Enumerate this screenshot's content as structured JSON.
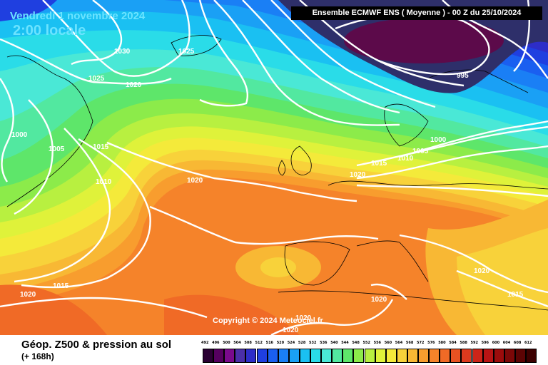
{
  "map": {
    "date_text": "Vendredi 1 novembre 2024",
    "time_text": "2:00 locale",
    "run_text": "Ensemble ECMWF ENS  ( Moyenne )  -  00 Z du 25/10/2024",
    "copyright": "Copyright © 2024 Meteociel.fr",
    "isobar_labels": [
      {
        "id": "1030",
        "text": "1030"
      },
      {
        "id": "1025a",
        "text": "1025"
      },
      {
        "id": "1025b",
        "text": "1025"
      },
      {
        "id": "1020a",
        "text": "1020"
      },
      {
        "id": "995",
        "text": "995"
      },
      {
        "id": "1000a",
        "text": "1000"
      },
      {
        "id": "1005a",
        "text": "1005"
      },
      {
        "id": "1015a",
        "text": "1015"
      },
      {
        "id": "1010a",
        "text": "1010"
      },
      {
        "id": "1020b",
        "text": "1020"
      },
      {
        "id": "1000b",
        "text": "1000"
      },
      {
        "id": "1005b",
        "text": "1005"
      },
      {
        "id": "1010b",
        "text": "1010"
      },
      {
        "id": "1015b",
        "text": "1015"
      },
      {
        "id": "1020c",
        "text": "1020"
      },
      {
        "id": "1015c",
        "text": "1015"
      },
      {
        "id": "1020d",
        "text": "1020"
      },
      {
        "id": "1020e",
        "text": "1020"
      },
      {
        "id": "1015d",
        "text": "1015"
      },
      {
        "id": "1020f",
        "text": "1020"
      },
      {
        "id": "1020g",
        "text": "1020"
      },
      {
        "id": "1020h",
        "text": "1020"
      }
    ]
  },
  "legend": {
    "title": "Géop. Z500 & pression au sol",
    "subtitle": "(+ 168h)",
    "scale_values": [
      "492",
      "496",
      "500",
      "504",
      "508",
      "512",
      "516",
      "520",
      "524",
      "528",
      "532",
      "536",
      "540",
      "544",
      "548",
      "552",
      "556",
      "560",
      "564",
      "568",
      "572",
      "576",
      "580",
      "584",
      "588",
      "592",
      "596",
      "600",
      "604",
      "608",
      "612"
    ],
    "scale_colors": [
      "#2a0033",
      "#55005f",
      "#7a0a8c",
      "#4b2fa8",
      "#2d2dc8",
      "#1f3fe0",
      "#1a5ff0",
      "#1a7ff5",
      "#1aa0f5",
      "#1ac0f2",
      "#2adce8",
      "#4ae8d6",
      "#52e8a0",
      "#5ee66a",
      "#8ceb4a",
      "#b8f040",
      "#dff23a",
      "#f4ea3a",
      "#f8d23a",
      "#f8b834",
      "#f89d2e",
      "#f5832a",
      "#f06a26",
      "#e85222",
      "#dc3a1e",
      "#cc2418",
      "#b81414",
      "#9c0c0c",
      "#7c0808",
      "#5c0404",
      "#3c0000"
    ]
  }
}
